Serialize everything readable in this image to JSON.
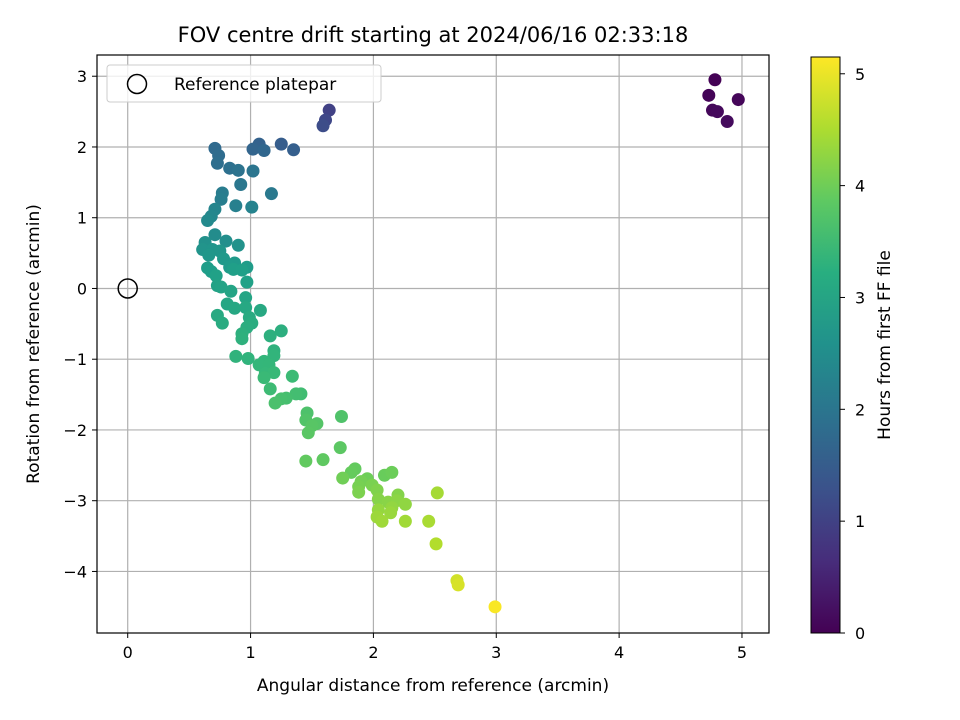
{
  "chart_data": {
    "type": "scatter",
    "title": "FOV centre drift starting at 2024/06/16 02:33:18",
    "xlabel": "Angular distance from reference (arcmin)",
    "ylabel": "Rotation from reference (arcmin)",
    "xlim": [
      -0.25,
      5.22
    ],
    "ylim": [
      -4.87,
      3.3
    ],
    "xticks": [
      0,
      1,
      2,
      3,
      4,
      5
    ],
    "yticks": [
      -4,
      -3,
      -2,
      -1,
      0,
      1,
      2,
      3
    ],
    "grid": true,
    "legend": {
      "position": "top-left",
      "entries": [
        "Reference platepar"
      ]
    },
    "reference_point": {
      "name": "Reference platepar",
      "x": 0,
      "y": 0
    },
    "colorbar": {
      "label": "Hours from first FF file",
      "colormap": "viridis",
      "range": [
        0,
        5.15
      ],
      "ticks": [
        0,
        1,
        2,
        3,
        4,
        5
      ]
    },
    "points": [
      {
        "x": 4.78,
        "y": 2.95,
        "h": 0.02
      },
      {
        "x": 4.73,
        "y": 2.73,
        "h": 0.05
      },
      {
        "x": 4.97,
        "y": 2.67,
        "h": 0.08
      },
      {
        "x": 4.76,
        "y": 2.52,
        "h": 0.1
      },
      {
        "x": 4.8,
        "y": 2.5,
        "h": 0.12
      },
      {
        "x": 4.88,
        "y": 2.36,
        "h": 0.15
      },
      {
        "x": 1.64,
        "y": 2.52,
        "h": 1.0
      },
      {
        "x": 1.61,
        "y": 2.38,
        "h": 1.1
      },
      {
        "x": 1.59,
        "y": 2.3,
        "h": 1.2
      },
      {
        "x": 1.25,
        "y": 2.04,
        "h": 1.5
      },
      {
        "x": 1.35,
        "y": 1.96,
        "h": 1.55
      },
      {
        "x": 1.07,
        "y": 2.04,
        "h": 1.6
      },
      {
        "x": 1.02,
        "y": 1.97,
        "h": 1.65
      },
      {
        "x": 1.11,
        "y": 1.95,
        "h": 1.7
      },
      {
        "x": 0.71,
        "y": 1.98,
        "h": 1.75
      },
      {
        "x": 0.74,
        "y": 1.88,
        "h": 1.8
      },
      {
        "x": 0.73,
        "y": 1.77,
        "h": 1.85
      },
      {
        "x": 0.83,
        "y": 1.7,
        "h": 1.9
      },
      {
        "x": 0.9,
        "y": 1.67,
        "h": 1.95
      },
      {
        "x": 1.02,
        "y": 1.66,
        "h": 2.0
      },
      {
        "x": 0.92,
        "y": 1.47,
        "h": 2.05
      },
      {
        "x": 1.17,
        "y": 1.34,
        "h": 2.1
      },
      {
        "x": 0.77,
        "y": 1.35,
        "h": 2.15
      },
      {
        "x": 0.76,
        "y": 1.26,
        "h": 2.2
      },
      {
        "x": 0.88,
        "y": 1.17,
        "h": 2.25
      },
      {
        "x": 1.01,
        "y": 1.15,
        "h": 2.3
      },
      {
        "x": 0.71,
        "y": 1.12,
        "h": 2.35
      },
      {
        "x": 0.68,
        "y": 1.02,
        "h": 2.4
      },
      {
        "x": 0.65,
        "y": 0.96,
        "h": 2.45
      },
      {
        "x": 0.71,
        "y": 0.76,
        "h": 2.5
      },
      {
        "x": 0.8,
        "y": 0.67,
        "h": 2.55
      },
      {
        "x": 0.63,
        "y": 0.65,
        "h": 2.6
      },
      {
        "x": 0.9,
        "y": 0.61,
        "h": 2.62
      },
      {
        "x": 0.61,
        "y": 0.55,
        "h": 2.65
      },
      {
        "x": 0.69,
        "y": 0.55,
        "h": 2.67
      },
      {
        "x": 0.75,
        "y": 0.53,
        "h": 2.7
      },
      {
        "x": 0.66,
        "y": 0.47,
        "h": 2.72
      },
      {
        "x": 0.78,
        "y": 0.42,
        "h": 2.75
      },
      {
        "x": 0.87,
        "y": 0.36,
        "h": 2.77
      },
      {
        "x": 0.83,
        "y": 0.3,
        "h": 2.8
      },
      {
        "x": 0.97,
        "y": 0.3,
        "h": 2.82
      },
      {
        "x": 0.65,
        "y": 0.29,
        "h": 2.84
      },
      {
        "x": 0.68,
        "y": 0.24,
        "h": 2.86
      },
      {
        "x": 0.86,
        "y": 0.27,
        "h": 2.88
      },
      {
        "x": 0.93,
        "y": 0.26,
        "h": 2.9
      },
      {
        "x": 0.72,
        "y": 0.18,
        "h": 2.92
      },
      {
        "x": 0.97,
        "y": 0.09,
        "h": 2.94
      },
      {
        "x": 0.73,
        "y": 0.04,
        "h": 2.96
      },
      {
        "x": 0.76,
        "y": 0.02,
        "h": 2.98
      },
      {
        "x": 0.84,
        "y": -0.04,
        "h": 3.0
      },
      {
        "x": 0.96,
        "y": -0.13,
        "h": 3.02
      },
      {
        "x": 0.81,
        "y": -0.22,
        "h": 3.04
      },
      {
        "x": 0.87,
        "y": -0.28,
        "h": 3.06
      },
      {
        "x": 0.96,
        "y": -0.27,
        "h": 3.08
      },
      {
        "x": 1.08,
        "y": -0.31,
        "h": 3.1
      },
      {
        "x": 0.73,
        "y": -0.38,
        "h": 3.12
      },
      {
        "x": 0.99,
        "y": -0.41,
        "h": 3.14
      },
      {
        "x": 0.77,
        "y": -0.49,
        "h": 3.16
      },
      {
        "x": 1.01,
        "y": -0.49,
        "h": 3.18
      },
      {
        "x": 0.97,
        "y": -0.55,
        "h": 3.2
      },
      {
        "x": 1.25,
        "y": -0.6,
        "h": 3.22
      },
      {
        "x": 0.93,
        "y": -0.64,
        "h": 3.24
      },
      {
        "x": 1.16,
        "y": -0.67,
        "h": 3.26
      },
      {
        "x": 0.93,
        "y": -0.71,
        "h": 3.28
      },
      {
        "x": 1.19,
        "y": -0.88,
        "h": 3.3
      },
      {
        "x": 0.88,
        "y": -0.96,
        "h": 3.32
      },
      {
        "x": 0.98,
        "y": -0.99,
        "h": 3.34
      },
      {
        "x": 1.19,
        "y": -0.95,
        "h": 3.36
      },
      {
        "x": 1.11,
        "y": -1.03,
        "h": 3.38
      },
      {
        "x": 1.07,
        "y": -1.08,
        "h": 3.4
      },
      {
        "x": 1.15,
        "y": -1.08,
        "h": 3.42
      },
      {
        "x": 1.12,
        "y": -1.2,
        "h": 3.44
      },
      {
        "x": 1.19,
        "y": -1.19,
        "h": 3.46
      },
      {
        "x": 1.11,
        "y": -1.26,
        "h": 3.48
      },
      {
        "x": 1.34,
        "y": -1.24,
        "h": 3.5
      },
      {
        "x": 1.16,
        "y": -1.42,
        "h": 3.52
      },
      {
        "x": 1.41,
        "y": -1.49,
        "h": 3.55
      },
      {
        "x": 1.37,
        "y": -1.49,
        "h": 3.58
      },
      {
        "x": 1.29,
        "y": -1.55,
        "h": 3.6
      },
      {
        "x": 1.25,
        "y": -1.56,
        "h": 3.62
      },
      {
        "x": 1.2,
        "y": -1.62,
        "h": 3.65
      },
      {
        "x": 1.46,
        "y": -1.76,
        "h": 3.68
      },
      {
        "x": 1.74,
        "y": -1.81,
        "h": 3.7
      },
      {
        "x": 1.45,
        "y": -1.86,
        "h": 3.72
      },
      {
        "x": 1.54,
        "y": -1.91,
        "h": 3.75
      },
      {
        "x": 1.5,
        "y": -1.94,
        "h": 3.78
      },
      {
        "x": 1.47,
        "y": -2.04,
        "h": 3.8
      },
      {
        "x": 1.73,
        "y": -2.25,
        "h": 3.82
      },
      {
        "x": 1.59,
        "y": -2.42,
        "h": 3.85
      },
      {
        "x": 1.45,
        "y": -2.44,
        "h": 3.88
      },
      {
        "x": 1.85,
        "y": -2.55,
        "h": 3.9
      },
      {
        "x": 1.82,
        "y": -2.6,
        "h": 3.92
      },
      {
        "x": 2.09,
        "y": -2.64,
        "h": 3.95
      },
      {
        "x": 2.15,
        "y": -2.6,
        "h": 3.98
      },
      {
        "x": 1.95,
        "y": -2.69,
        "h": 4.0
      },
      {
        "x": 1.75,
        "y": -2.68,
        "h": 4.02
      },
      {
        "x": 1.9,
        "y": -2.73,
        "h": 4.05
      },
      {
        "x": 1.88,
        "y": -2.8,
        "h": 4.08
      },
      {
        "x": 1.99,
        "y": -2.78,
        "h": 4.1
      },
      {
        "x": 1.88,
        "y": -2.88,
        "h": 4.12
      },
      {
        "x": 2.03,
        "y": -2.85,
        "h": 4.15
      },
      {
        "x": 2.2,
        "y": -2.92,
        "h": 4.18
      },
      {
        "x": 2.04,
        "y": -2.98,
        "h": 4.2
      },
      {
        "x": 2.12,
        "y": -3.02,
        "h": 4.22
      },
      {
        "x": 2.19,
        "y": -3.0,
        "h": 4.25
      },
      {
        "x": 2.26,
        "y": -3.05,
        "h": 4.28
      },
      {
        "x": 2.15,
        "y": -3.1,
        "h": 4.3
      },
      {
        "x": 2.04,
        "y": -3.13,
        "h": 4.32
      },
      {
        "x": 2.14,
        "y": -3.17,
        "h": 4.35
      },
      {
        "x": 2.03,
        "y": -3.23,
        "h": 4.38
      },
      {
        "x": 2.07,
        "y": -3.29,
        "h": 4.4
      },
      {
        "x": 2.26,
        "y": -3.29,
        "h": 4.42
      },
      {
        "x": 2.52,
        "y": -2.89,
        "h": 4.45
      },
      {
        "x": 2.45,
        "y": -3.29,
        "h": 4.48
      },
      {
        "x": 2.51,
        "y": -3.61,
        "h": 4.55
      },
      {
        "x": 2.68,
        "y": -4.13,
        "h": 4.8
      },
      {
        "x": 2.69,
        "y": -4.19,
        "h": 4.85
      },
      {
        "x": 2.99,
        "y": -4.5,
        "h": 5.12
      }
    ]
  }
}
